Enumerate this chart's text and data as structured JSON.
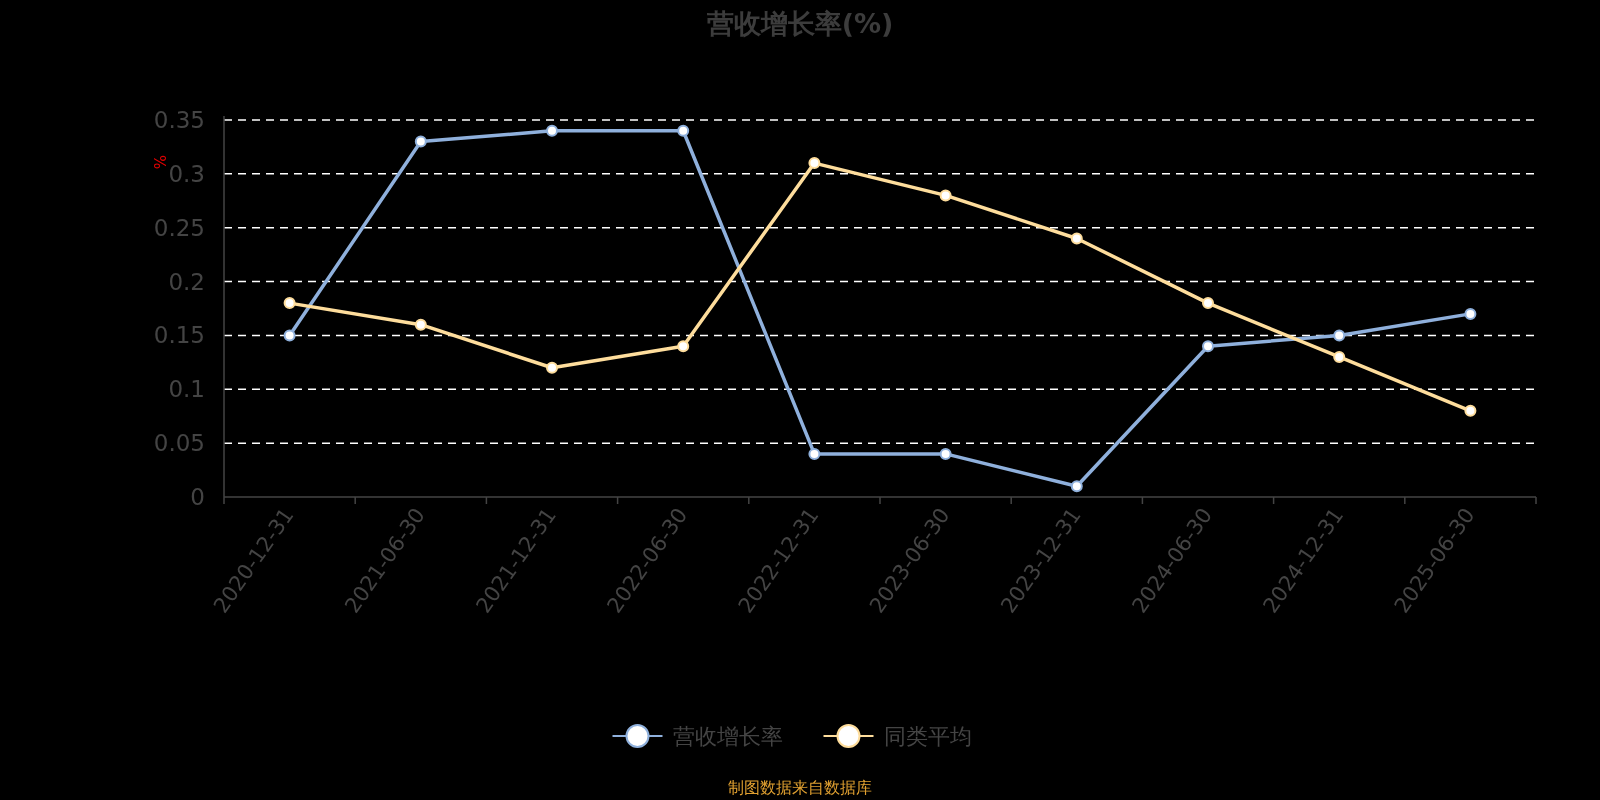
{
  "chart_data": {
    "type": "line",
    "title": "营收增长率(%)",
    "ylabel": "%",
    "categories": [
      "2020-12-31",
      "2021-06-30",
      "2021-12-31",
      "2022-06-30",
      "2022-12-31",
      "2023-06-30",
      "2023-12-31",
      "2024-06-30",
      "2024-12-31",
      "2025-06-30"
    ],
    "series": [
      {
        "name": "营收增长率",
        "color": "#8fb0dc",
        "values": [
          0.15,
          0.33,
          0.34,
          0.34,
          0.04,
          0.04,
          0.01,
          0.14,
          0.15,
          0.17
        ]
      },
      {
        "name": "同类平均",
        "color": "#fedd9c",
        "values": [
          0.18,
          0.16,
          0.12,
          0.14,
          0.31,
          0.28,
          0.24,
          0.18,
          0.13,
          0.08
        ]
      }
    ],
    "ylim": [
      0,
      0.35
    ],
    "yticks": [
      0,
      0.05,
      0.1,
      0.15,
      0.2,
      0.25,
      0.3,
      0.35
    ],
    "grid": "y",
    "legend": "bottom",
    "marker": "circle",
    "line_style": "solid",
    "annotations": [
      "制图数据来自数据库"
    ]
  }
}
